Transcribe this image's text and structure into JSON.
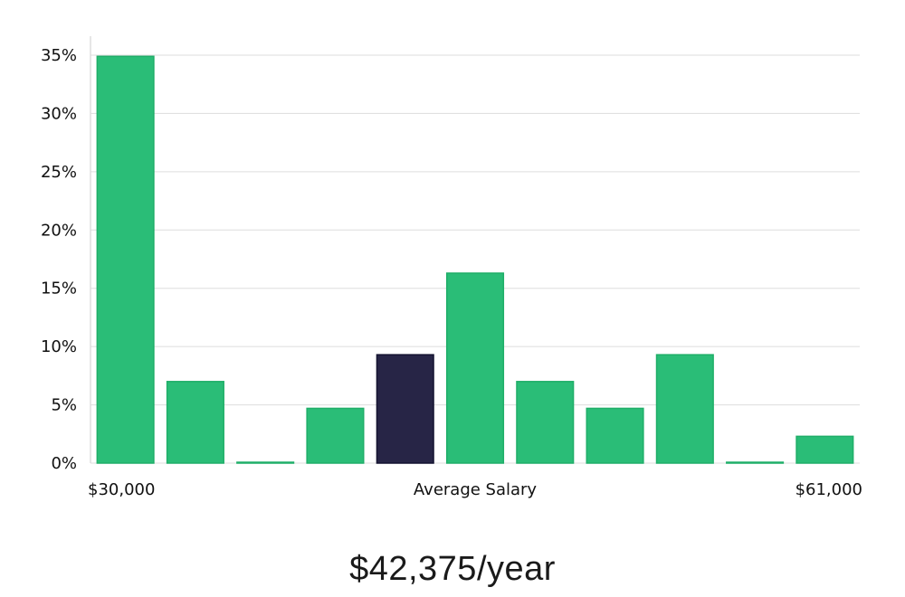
{
  "chart_data": {
    "type": "bar",
    "categories": [
      "1",
      "2",
      "3",
      "4",
      "5",
      "6",
      "7",
      "8",
      "9",
      "10",
      "11"
    ],
    "values": [
      34.9,
      7.0,
      0,
      4.7,
      9.3,
      16.3,
      7.0,
      4.7,
      9.3,
      0,
      2.3
    ],
    "highlight_index": 4,
    "ylim": [
      0,
      35
    ],
    "yticks": [
      "0%",
      "5%",
      "10%",
      "15%",
      "20%",
      "25%",
      "30%",
      "35%"
    ],
    "x_left_label": "$30,000",
    "x_center_label": "Average Salary",
    "x_right_label": "$61,000",
    "grid": true,
    "colors": {
      "bar": "#2abd77",
      "bar_edge": "#1fae68",
      "highlight": "#272546",
      "grid": "#dddddd",
      "axis": "#cccccc"
    }
  },
  "headline": "$42,375/year"
}
